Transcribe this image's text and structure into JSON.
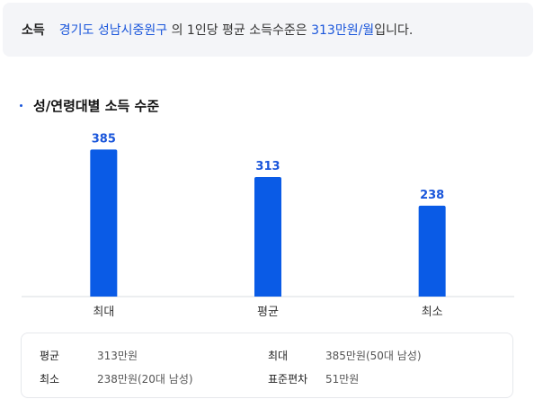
{
  "summary": {
    "tag": "소득",
    "region": "경기도 성남시중원구",
    "text1": " 의 1인당 평균 소득수준은 ",
    "value": "313만원/월",
    "text2": "입니다."
  },
  "section_title": "성/연령대별 소득 수준",
  "colors": {
    "bar": "#0a5be6",
    "value_label": "#1a56db",
    "axis": "#d9dce1"
  },
  "chart_data": {
    "type": "bar",
    "categories": [
      "최대",
      "평균",
      "최소"
    ],
    "values": [
      385,
      313,
      238
    ],
    "ylim": [
      0,
      400
    ],
    "grid": false,
    "legend": "none"
  },
  "stats": {
    "avg_label": "평균",
    "avg_value": "313만원",
    "max_label": "최대",
    "max_value": "385만원(50대 남성)",
    "min_label": "최소",
    "min_value": "238만원(20대 남성)",
    "std_label": "표준편차",
    "std_value": "51만원"
  }
}
